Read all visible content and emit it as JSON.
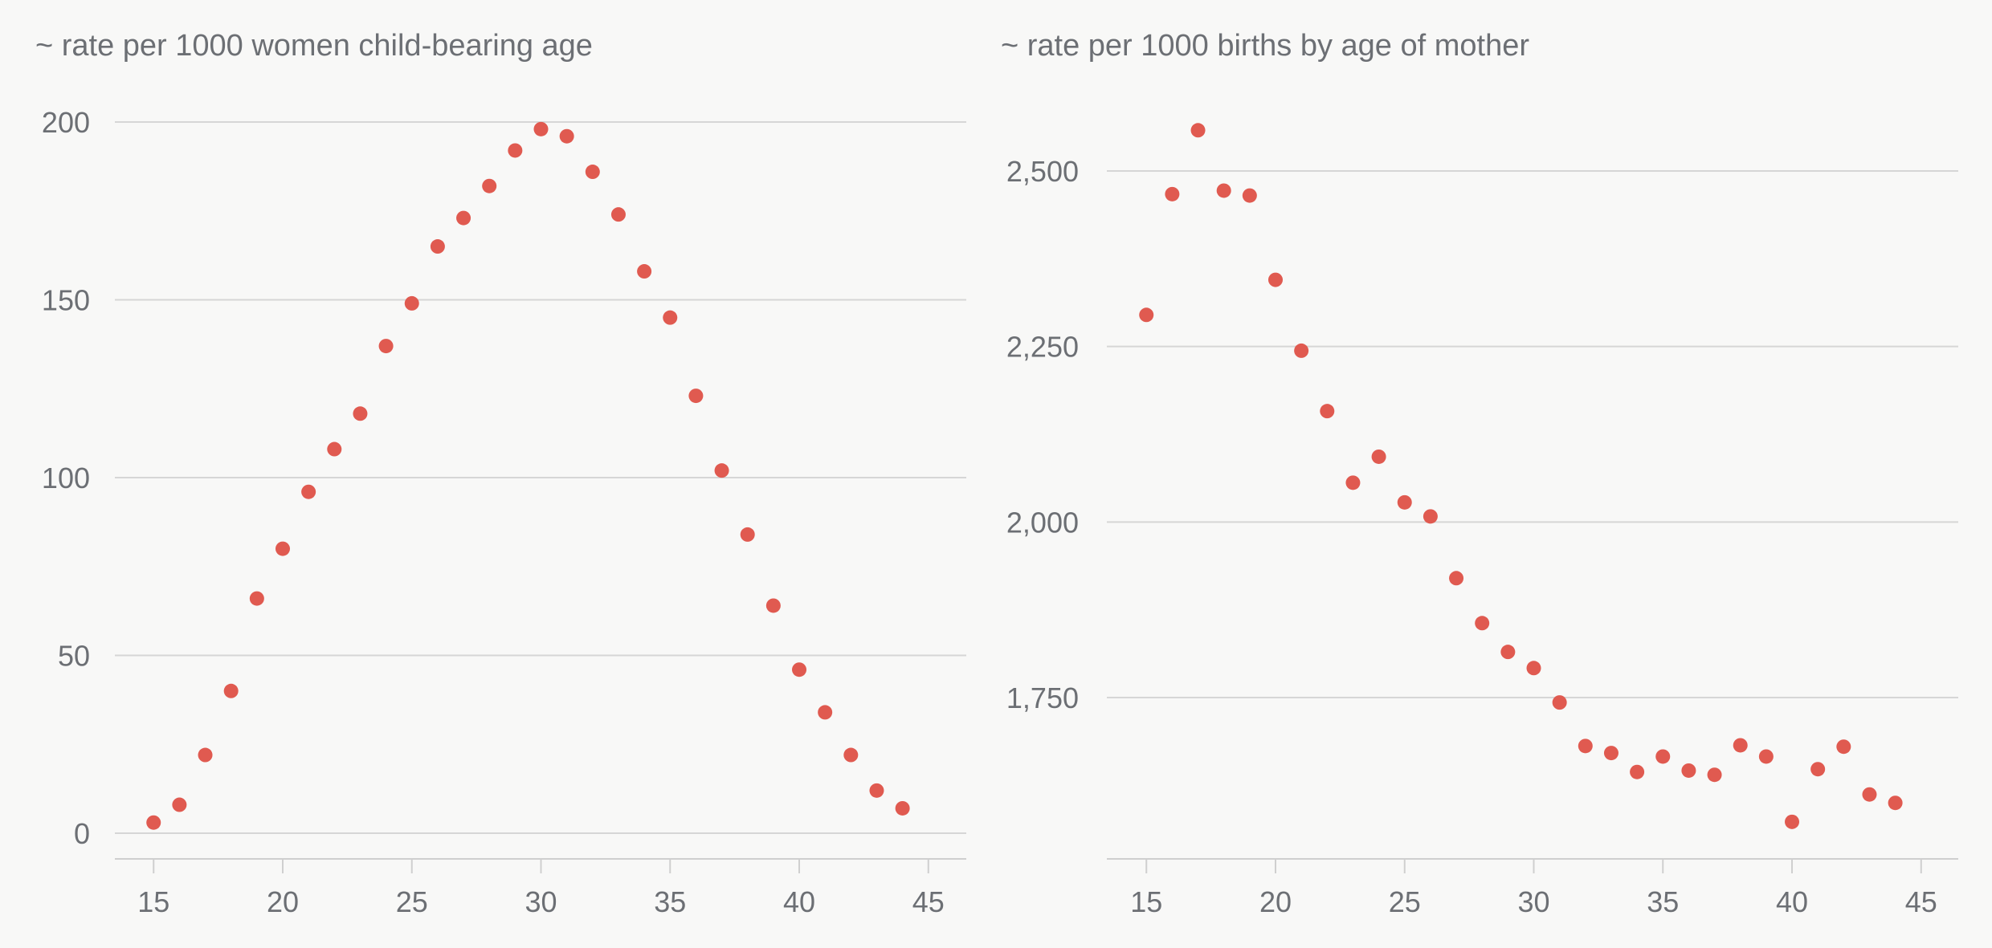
{
  "colors": {
    "background": "#f8f8f7",
    "point": "#e05a50",
    "text": "#6c6f74",
    "grid": "#d6d6d6"
  },
  "chart_data": [
    {
      "type": "scatter",
      "title": "~ rate per 1000 women child-bearing age",
      "xlabel": "",
      "ylabel": "",
      "xlim": [
        13.5,
        46.5
      ],
      "ylim": [
        -7,
        200
      ],
      "x_ticks": [
        15,
        20,
        25,
        30,
        35,
        40,
        45
      ],
      "x_tick_labels": [
        "15",
        "20",
        "25",
        "30",
        "35",
        "40",
        "45"
      ],
      "y_ticks": [
        0,
        50,
        100,
        150,
        200
      ],
      "y_tick_labels": [
        "0",
        "50",
        "100",
        "150",
        "200"
      ],
      "grid": true,
      "x": [
        15,
        16,
        17,
        18,
        19,
        20,
        21,
        22,
        23,
        24,
        25,
        26,
        27,
        28,
        29,
        30,
        31,
        32,
        33,
        34,
        35,
        36,
        37,
        38,
        39,
        40,
        41,
        42,
        43,
        44
      ],
      "y": [
        3,
        8,
        22,
        40,
        66,
        80,
        96,
        108,
        118,
        137,
        149,
        165,
        173,
        182,
        192,
        198,
        196,
        186,
        174,
        158,
        145,
        123,
        102,
        84,
        64,
        46,
        34,
        22,
        12,
        7
      ]
    },
    {
      "type": "scatter",
      "title": "~ rate per 1000 births by age of mother",
      "xlabel": "",
      "ylabel": "",
      "xlim": [
        13.5,
        46.5
      ],
      "ylim": [
        1530,
        2570
      ],
      "x_ticks": [
        15,
        20,
        25,
        30,
        35,
        40,
        45
      ],
      "x_tick_labels": [
        "15",
        "20",
        "25",
        "30",
        "35",
        "40",
        "45"
      ],
      "y_ticks": [
        1750,
        2000,
        2250,
        2500
      ],
      "y_tick_labels": [
        "1,750",
        "2,000",
        "2,250",
        "2,500"
      ],
      "grid": true,
      "x": [
        15,
        16,
        17,
        18,
        19,
        20,
        21,
        22,
        23,
        24,
        25,
        26,
        27,
        28,
        29,
        30,
        31,
        32,
        33,
        34,
        35,
        36,
        37,
        38,
        39,
        40,
        41,
        42,
        43,
        44
      ],
      "y": [
        2295,
        2467,
        2558,
        2472,
        2465,
        2345,
        2244,
        2158,
        2056,
        2093,
        2028,
        2008,
        1920,
        1856,
        1815,
        1792,
        1743,
        1681,
        1671,
        1644,
        1666,
        1646,
        1640,
        1682,
        1666,
        1573,
        1648,
        1680,
        1612,
        1600
      ]
    }
  ]
}
